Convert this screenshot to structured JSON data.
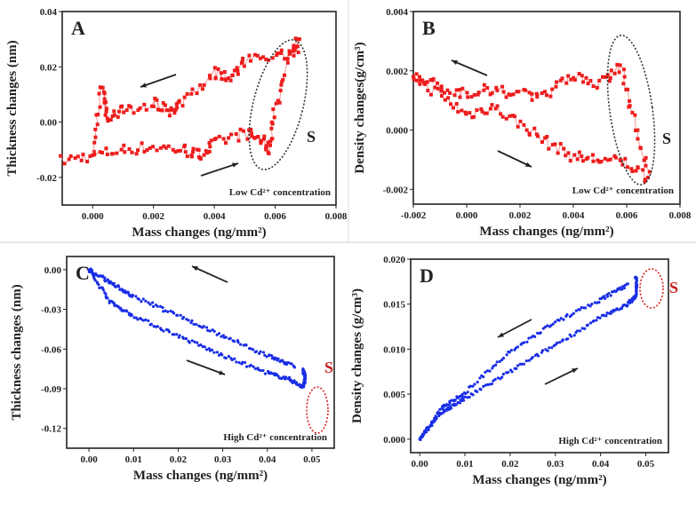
{
  "chart_data": [
    {
      "type": "scatter",
      "panel_label": "A",
      "xlabel": "Mass changes (ng/mm²)",
      "ylabel": "Thickness changes (nm)",
      "xlim": [
        -0.001,
        0.008
      ],
      "ylim": [
        -0.03,
        0.04
      ],
      "xticks": [
        0.0,
        0.002,
        0.004,
        0.006,
        0.008
      ],
      "xtick_labels": [
        "0.000",
        "0.002",
        "0.004",
        "0.006",
        "0.008"
      ],
      "yticks": [
        -0.02,
        0.0,
        0.02,
        0.04
      ],
      "ytick_labels": [
        "-0.02",
        "0.00",
        "0.02",
        "0.04"
      ],
      "annotation": "Low Cd²⁺ concentration",
      "region_label": "S",
      "color": "#ee1c1c",
      "series": [
        {
          "name": "forward",
          "x": [
            -0.001,
            0.0,
            0.001,
            0.002,
            0.003,
            0.0035,
            0.004,
            0.005,
            0.0055,
            0.0058,
            0.006,
            0.0065,
            0.0068
          ],
          "y": [
            -0.014,
            -0.012,
            -0.01,
            -0.009,
            -0.01,
            -0.012,
            -0.008,
            -0.004,
            -0.006,
            -0.01,
            0.005,
            0.025,
            0.03
          ]
        },
        {
          "name": "backward",
          "x": [
            0.0068,
            0.006,
            0.005,
            0.0045,
            0.004,
            0.003,
            0.0025,
            0.002,
            0.001,
            0.0005,
            0.0003,
            0.0
          ],
          "y": [
            0.027,
            0.023,
            0.022,
            0.016,
            0.018,
            0.008,
            0.004,
            0.007,
            0.004,
            0.002,
            0.014,
            -0.012
          ]
        }
      ]
    },
    {
      "type": "scatter",
      "panel_label": "B",
      "xlabel": "Mass changes (ng/mm²)",
      "ylabel": "Density changes(g/cm³)",
      "xlim": [
        -0.002,
        0.008
      ],
      "ylim": [
        -0.0025,
        0.004
      ],
      "xticks": [
        -0.002,
        0.0,
        0.002,
        0.004,
        0.006,
        0.008
      ],
      "xtick_labels": [
        "-0.002",
        "0.000",
        "0.002",
        "0.004",
        "0.006",
        "0.008"
      ],
      "yticks": [
        -0.002,
        0.0,
        0.002,
        0.004
      ],
      "ytick_labels": [
        "-0.002",
        "0.000",
        "0.002",
        "0.004"
      ],
      "annotation": "Low Cd²⁺ concentration",
      "region_label": "S",
      "color": "#ee1c1c",
      "series": [
        {
          "name": "forward",
          "x": [
            -0.002,
            -0.001,
            0.0,
            0.001,
            0.002,
            0.003,
            0.004,
            0.005,
            0.006,
            0.0068
          ],
          "y": [
            0.0018,
            0.0012,
            0.0005,
            0.0008,
            0.0002,
            -0.0004,
            -0.0009,
            -0.001,
            -0.0011,
            -0.0016
          ]
        },
        {
          "name": "backward",
          "x": [
            0.0068,
            0.0062,
            0.0058,
            0.005,
            0.004,
            0.003,
            0.002,
            0.001,
            0.0,
            -0.001,
            -0.002
          ],
          "y": [
            -0.0014,
            0.0005,
            0.0022,
            0.0016,
            0.0018,
            0.0012,
            0.0012,
            0.0014,
            0.0012,
            0.0015,
            0.0018
          ]
        }
      ]
    },
    {
      "type": "scatter",
      "panel_label": "C",
      "xlabel": "Mass changes (ng/mm²)",
      "ylabel": "Thickness changes (nm)",
      "xlim": [
        -0.005,
        0.055
      ],
      "ylim": [
        -0.135,
        0.01
      ],
      "xticks": [
        0.0,
        0.01,
        0.02,
        0.03,
        0.04,
        0.05
      ],
      "xtick_labels": [
        "0.00",
        "0.01",
        "0.02",
        "0.03",
        "0.04",
        "0.05"
      ],
      "yticks": [
        0.0,
        -0.03,
        -0.06,
        -0.09,
        -0.12
      ],
      "ytick_labels": [
        "0.00",
        "-0.03",
        "-0.06",
        "-0.09",
        "-0.12"
      ],
      "annotation": "High Cd²⁺ concentration",
      "region_label": "S",
      "color": "#1a2ee6",
      "series": [
        {
          "name": "forward",
          "x": [
            0.0,
            0.005,
            0.01,
            0.02,
            0.03,
            0.04,
            0.045,
            0.048,
            0.0485,
            0.048
          ],
          "y": [
            0.0,
            -0.025,
            -0.035,
            -0.05,
            -0.065,
            -0.078,
            -0.083,
            -0.089,
            -0.082,
            -0.075
          ]
        },
        {
          "name": "backward",
          "x": [
            0.046,
            0.04,
            0.03,
            0.02,
            0.01,
            0.005,
            0.0
          ],
          "y": [
            -0.073,
            -0.065,
            -0.05,
            -0.035,
            -0.02,
            -0.01,
            0.0
          ]
        }
      ]
    },
    {
      "type": "scatter",
      "panel_label": "D",
      "xlabel": "Mass changes (ng/mm²)",
      "ylabel": "Density changes (g/cm³)",
      "xlim": [
        -0.002,
        0.055
      ],
      "ylim": [
        -0.0015,
        0.02
      ],
      "xticks": [
        0.0,
        0.01,
        0.02,
        0.03,
        0.04,
        0.05
      ],
      "xtick_labels": [
        "0.00",
        "0.01",
        "0.02",
        "0.03",
        "0.04",
        "0.05"
      ],
      "yticks": [
        0.0,
        0.005,
        0.01,
        0.015,
        0.02
      ],
      "ytick_labels": [
        "0.000",
        "0.005",
        "0.010",
        "0.015",
        "0.020"
      ],
      "annotation": "High Cd²⁺ concentration",
      "region_label": "S",
      "color": "#1a2ee6",
      "series": [
        {
          "name": "forward",
          "x": [
            0.0,
            0.005,
            0.01,
            0.02,
            0.03,
            0.04,
            0.046,
            0.048,
            0.0478
          ],
          "y": [
            0.0,
            0.003,
            0.0045,
            0.0075,
            0.0105,
            0.0135,
            0.015,
            0.016,
            0.018
          ]
        },
        {
          "name": "backward",
          "x": [
            0.046,
            0.04,
            0.03,
            0.02,
            0.01,
            0.005,
            0.0
          ],
          "y": [
            0.0172,
            0.0155,
            0.013,
            0.0098,
            0.0052,
            0.0035,
            0.0
          ]
        }
      ]
    }
  ]
}
